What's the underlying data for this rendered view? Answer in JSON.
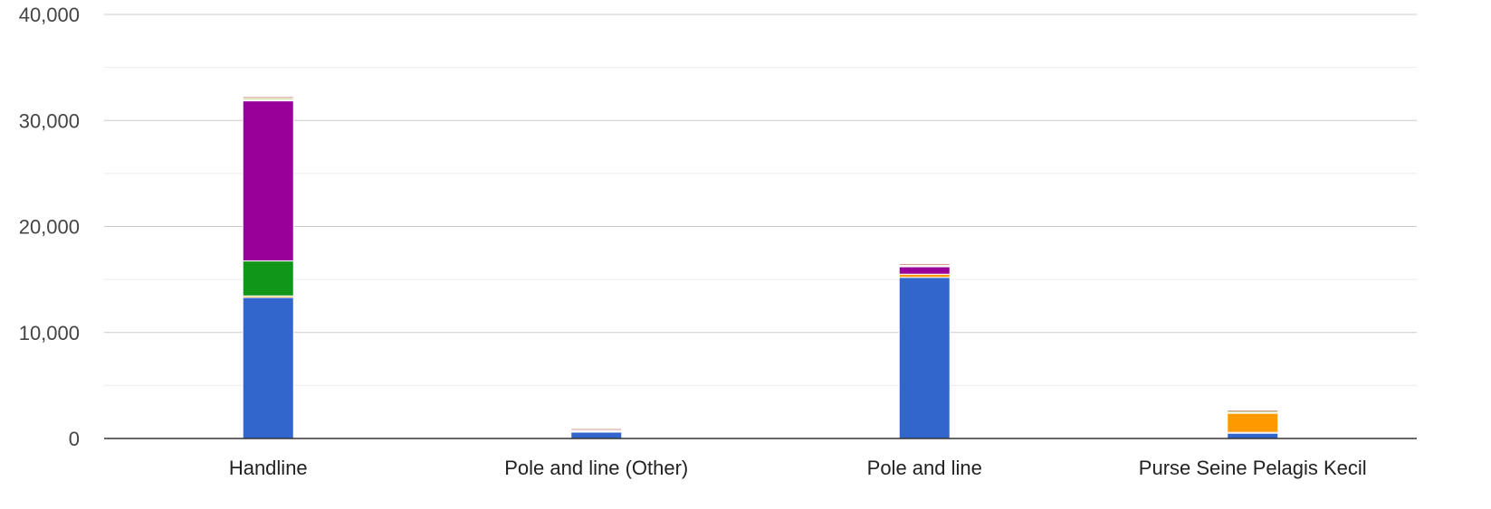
{
  "chart_data": {
    "type": "bar",
    "stacked": true,
    "title": "",
    "xlabel": "",
    "ylabel": "",
    "ylim": [
      0,
      40000
    ],
    "grid": true,
    "legend": "none",
    "y_ticks": [
      {
        "value": 0,
        "label": "0"
      },
      {
        "value": 10000,
        "label": "10,000"
      },
      {
        "value": 20000,
        "label": "20,000"
      },
      {
        "value": 30000,
        "label": "30,000"
      },
      {
        "value": 40000,
        "label": "40,000"
      }
    ],
    "categories": [
      "Handline",
      "Pole and line (Other)",
      "Pole and line",
      "Purse Seine Pelagis Kecil"
    ],
    "series": [
      {
        "color": "#3366cc",
        "values": [
          13300,
          600,
          15200,
          500
        ]
      },
      {
        "color": "#dc3912",
        "values": [
          0,
          50,
          0,
          80
        ]
      },
      {
        "color": "#ff9900",
        "values": [
          150,
          80,
          300,
          1800
        ]
      },
      {
        "color": "#109618",
        "values": [
          3300,
          0,
          0,
          50
        ]
      },
      {
        "color": "#990099",
        "values": [
          15100,
          0,
          700,
          0
        ]
      },
      {
        "color": "#0099c6",
        "values": [
          80,
          0,
          50,
          0
        ]
      },
      {
        "color": "#dd4477",
        "values": [
          50,
          0,
          30,
          0
        ]
      },
      {
        "color": "#66aa00",
        "values": [
          120,
          60,
          80,
          120
        ]
      },
      {
        "color": "#b82e2e",
        "values": [
          60,
          40,
          30,
          50
        ]
      }
    ]
  }
}
